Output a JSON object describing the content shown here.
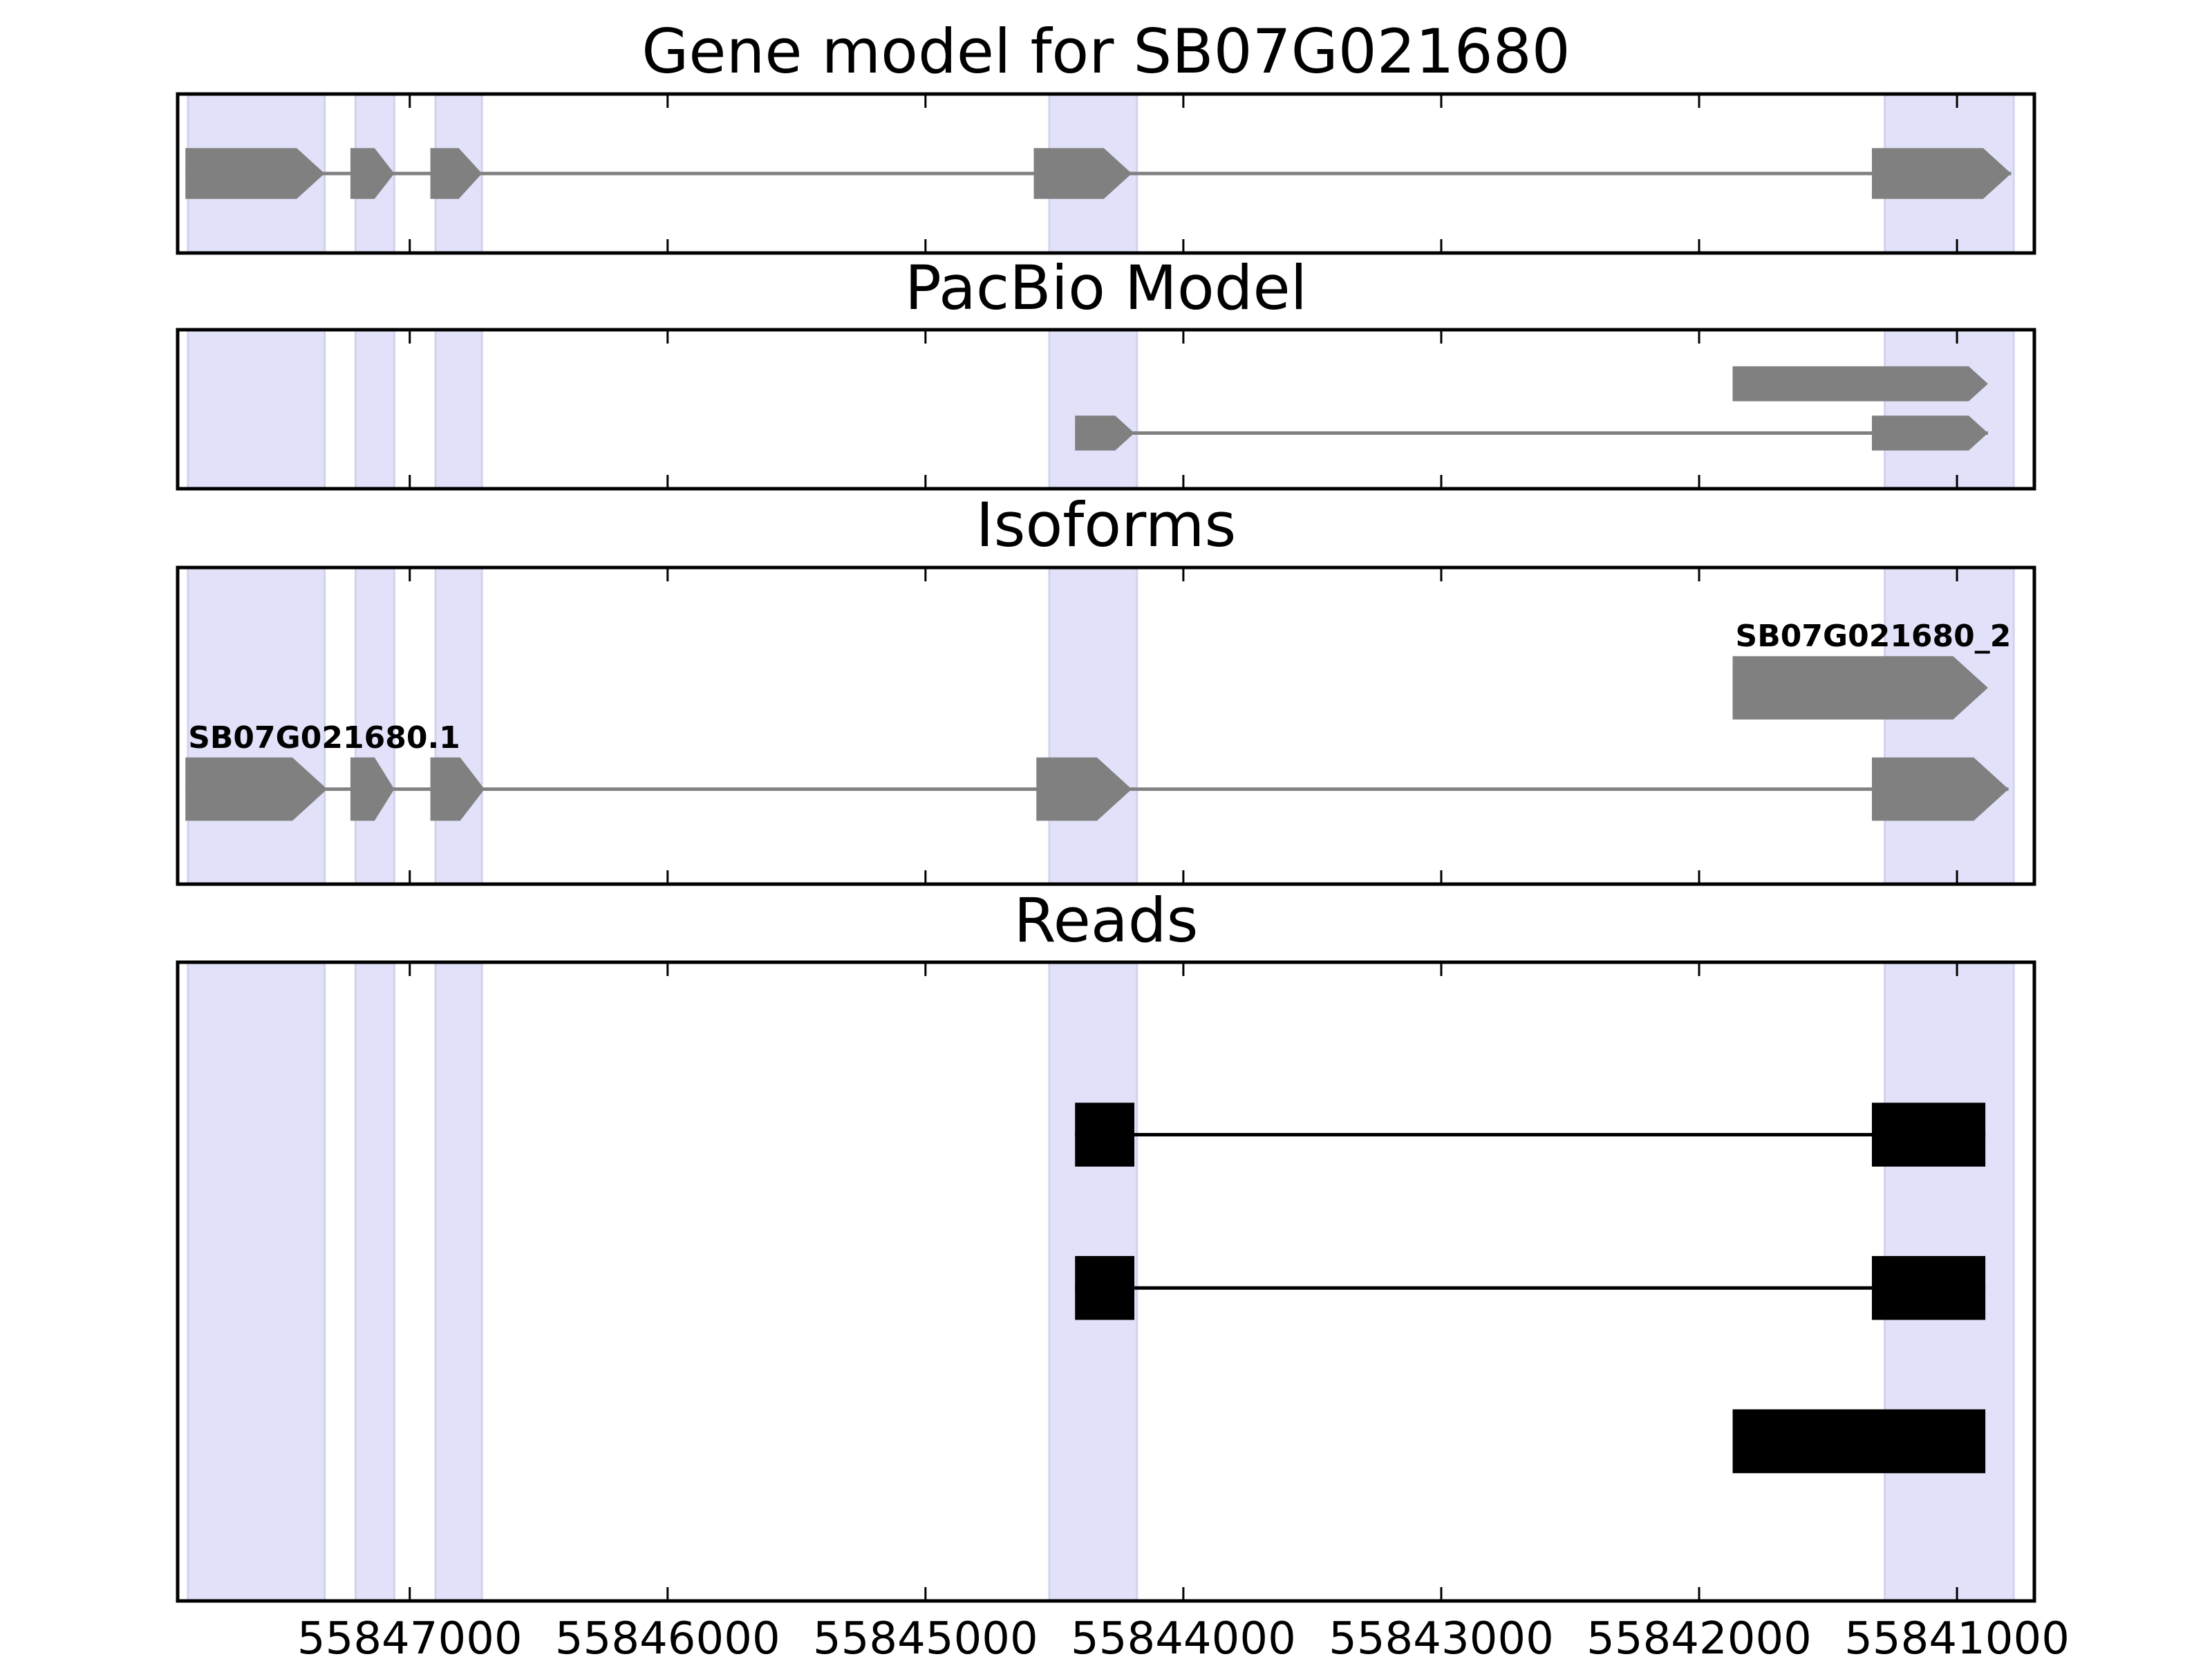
{
  "colors": {
    "exon_fill": "#808080",
    "intron_line": "#808080",
    "read_fill": "#000000",
    "read_line": "#000000",
    "highlight": "#e1e1fa",
    "axis": "#000000"
  },
  "chart_data": {
    "type": "genome-track",
    "xlim": [
      55847900,
      55840700
    ],
    "x_ticks": [
      55847000,
      55846000,
      55845000,
      55844000,
      55843000,
      55842000,
      55841000
    ],
    "x_tick_labels": [
      "55847000",
      "55846000",
      "55845000",
      "55844000",
      "55843000",
      "55842000",
      "55841000"
    ],
    "highlight_regions": [
      [
        55847860,
        55847330
      ],
      [
        55847210,
        55847060
      ],
      [
        55846900,
        55846720
      ],
      [
        55844520,
        55844180
      ],
      [
        55841280,
        55840780
      ]
    ],
    "panels": [
      {
        "title": "Gene model for SB07G021680",
        "kind": "model",
        "ylim": [
          0,
          1
        ],
        "transcripts": [
          {
            "label": "",
            "y": 0.5,
            "exons": [
              [
                55847870,
                55847330
              ],
              [
                55847230,
                55847060
              ],
              [
                55846920,
                55846720
              ],
              [
                55844580,
                55844200
              ],
              [
                55841330,
                55840790
              ]
            ],
            "height": 0.32
          }
        ]
      },
      {
        "title": "PacBio Model",
        "kind": "model",
        "ylim": [
          0,
          1
        ],
        "transcripts": [
          {
            "label": "",
            "y": 0.35,
            "exons": [
              [
                55844420,
                55844190
              ],
              [
                55841330,
                55840880
              ]
            ],
            "height": 0.22
          },
          {
            "label": "",
            "y": 0.66,
            "exons": [
              [
                55841870,
                55840880
              ]
            ],
            "height": 0.22
          }
        ]
      },
      {
        "title": "Isoforms",
        "kind": "model",
        "ylim": [
          0,
          1
        ],
        "transcripts": [
          {
            "label": "SB07G021680.1",
            "y": 0.3,
            "exons": [
              [
                55847870,
                55847320
              ],
              [
                55847230,
                55847060
              ],
              [
                55846920,
                55846710
              ],
              [
                55844570,
                55844200
              ],
              [
                55841330,
                55840800
              ]
            ],
            "height": 0.2
          },
          {
            "label": "SB07G021680_2",
            "y": 0.62,
            "exons": [
              [
                55841870,
                55840880
              ]
            ],
            "height": 0.2
          }
        ]
      },
      {
        "title": "Reads",
        "kind": "reads",
        "ylim": [
          0,
          1
        ],
        "transcripts": [
          {
            "label": "",
            "y": 0.73,
            "exons": [
              [
                55844420,
                55844190
              ],
              [
                55841330,
                55840890
              ]
            ],
            "height": 0.1
          },
          {
            "label": "",
            "y": 0.49,
            "exons": [
              [
                55844420,
                55844190
              ],
              [
                55841330,
                55840890
              ]
            ],
            "height": 0.1
          },
          {
            "label": "",
            "y": 0.25,
            "exons": [
              [
                55841870,
                55840890
              ]
            ],
            "height": 0.1
          }
        ]
      }
    ]
  }
}
